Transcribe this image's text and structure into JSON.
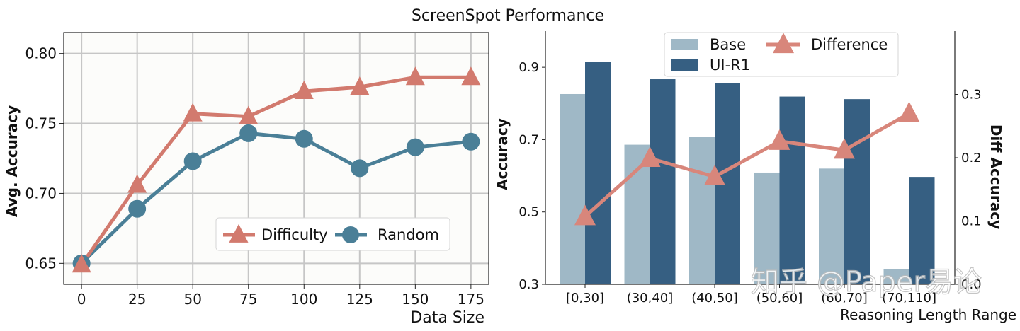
{
  "figure_title": "ScreenSpot Performance",
  "watermark": "知乎 @Paper易论",
  "colors": {
    "difficulty": "#d27a6e",
    "random": "#4a7f97",
    "base": "#9fb8c6",
    "ui_r1": "#365f82",
    "difference": "#d8867b",
    "grid": "#c6c6c6",
    "panel_bg": "#fcfcfa"
  },
  "chart_data": [
    {
      "type": "line",
      "xlabel": "Data Size",
      "ylabel": "Avg. Accuracy",
      "x": [
        0,
        25,
        50,
        75,
        100,
        125,
        150,
        175
      ],
      "x_tick_labels": [
        "0",
        "25",
        "50",
        "75",
        "100",
        "125",
        "150",
        "175"
      ],
      "xlim": [
        -8,
        183
      ],
      "ylim": [
        0.635,
        0.815
      ],
      "y_ticks": [
        0.65,
        0.7,
        0.75,
        0.8
      ],
      "y_tick_labels": [
        "0.65",
        "0.70",
        "0.75",
        "0.80"
      ],
      "grid": true,
      "legend_position": "lower-right",
      "series": [
        {
          "name": "Difficulty",
          "marker": "triangle",
          "values": [
            0.649,
            0.706,
            0.757,
            0.755,
            0.773,
            0.776,
            0.783,
            0.783
          ]
        },
        {
          "name": "Random",
          "marker": "circle",
          "values": [
            0.65,
            0.689,
            0.723,
            0.743,
            0.739,
            0.718,
            0.733,
            0.737
          ]
        }
      ]
    },
    {
      "type": "bar",
      "xlabel": "Reasoning Length Range",
      "ylabel": "Accuracy",
      "y2label": "Diff Accuracy",
      "categories": [
        "[0,30]",
        "(30,40]",
        "(40,50]",
        "(50,60]",
        "(60,70]",
        "(70,110]"
      ],
      "ylim": [
        0.3,
        1.0
      ],
      "y_ticks": [
        0.3,
        0.5,
        0.7,
        0.9
      ],
      "y_tick_labels": [
        "0.3",
        "0.5",
        "0.7",
        "0.9"
      ],
      "y2lim": [
        0.0,
        0.4
      ],
      "y2_ticks": [
        0.0,
        0.1,
        0.2,
        0.3
      ],
      "y2_tick_labels": [
        "0.0",
        "0.1",
        "0.2",
        "0.3"
      ],
      "grid": false,
      "legend_position": "top",
      "series": [
        {
          "name": "Base",
          "axis": "left",
          "values": [
            0.826,
            0.686,
            0.708,
            0.609,
            0.62,
            0.343
          ]
        },
        {
          "name": "UI-R1",
          "axis": "left",
          "values": [
            0.915,
            0.867,
            0.857,
            0.819,
            0.812,
            0.597
          ]
        },
        {
          "name": "Difference",
          "axis": "right",
          "marker": "triangle",
          "values": [
            0.107,
            0.199,
            0.17,
            0.226,
            0.212,
            0.27
          ]
        }
      ]
    }
  ]
}
